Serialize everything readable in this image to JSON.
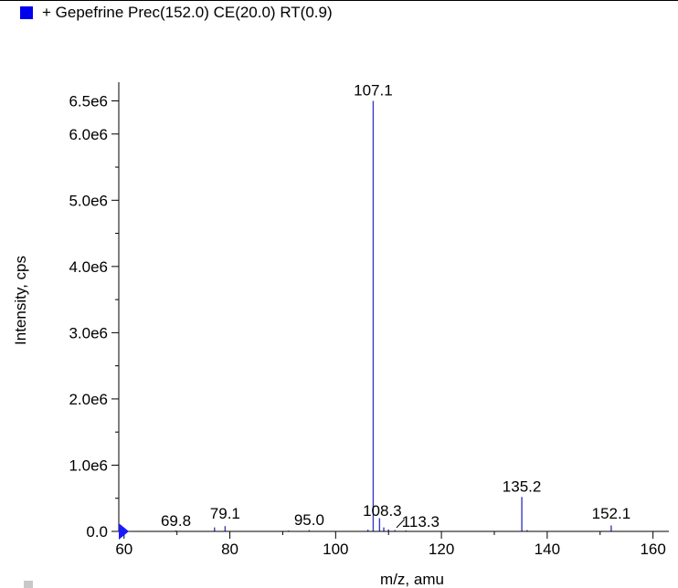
{
  "legend": {
    "text": "+ Gepefrine Prec(152.0) CE(20.0) RT(0.9)",
    "swatch_color": "#0000ee"
  },
  "chart_data": {
    "type": "bar",
    "title": "",
    "xlabel": "m/z, amu",
    "ylabel": "Intensity, cps",
    "xlim": [
      59,
      163
    ],
    "ylim": [
      0,
      6700000
    ],
    "x_ticks": [
      60,
      80,
      100,
      120,
      140,
      160
    ],
    "y_ticks": [
      0,
      1000000,
      2000000,
      3000000,
      4000000,
      5000000,
      6000000,
      6500000
    ],
    "y_tick_labels": [
      "0.0",
      "1.0e6",
      "2.0e6",
      "3.0e6",
      "4.0e6",
      "5.0e6",
      "6.0e6",
      "6.5e6"
    ],
    "series_color": "#3b3bc8",
    "peaks": [
      {
        "mz": 69.8,
        "intensity": 15000
      },
      {
        "mz": 77.1,
        "intensity": 60000
      },
      {
        "mz": 79.1,
        "intensity": 80000
      },
      {
        "mz": 91.1,
        "intensity": 12000
      },
      {
        "mz": 95.0,
        "intensity": 20000
      },
      {
        "mz": 106.1,
        "intensity": 25000
      },
      {
        "mz": 107.1,
        "intensity": 6500000
      },
      {
        "mz": 108.3,
        "intensity": 200000
      },
      {
        "mz": 109.1,
        "intensity": 60000
      },
      {
        "mz": 110.0,
        "intensity": 30000
      },
      {
        "mz": 111.2,
        "intensity": 20000
      },
      {
        "mz": 113.3,
        "intensity": 15000
      },
      {
        "mz": 135.2,
        "intensity": 520000
      },
      {
        "mz": 136.2,
        "intensity": 20000
      },
      {
        "mz": 152.1,
        "intensity": 90000
      }
    ],
    "peak_labels": [
      {
        "text": "69.8",
        "mz": 69.8
      },
      {
        "text": "79.1",
        "mz": 79.1
      },
      {
        "text": "95.0",
        "mz": 95.0
      },
      {
        "text": "107.1",
        "mz": 107.1
      },
      {
        "text": "108.3",
        "mz": 108.3
      },
      {
        "text": "113.3",
        "mz": 113.3
      },
      {
        "text": "135.2",
        "mz": 135.2
      },
      {
        "text": "152.1",
        "mz": 152.1
      }
    ]
  }
}
